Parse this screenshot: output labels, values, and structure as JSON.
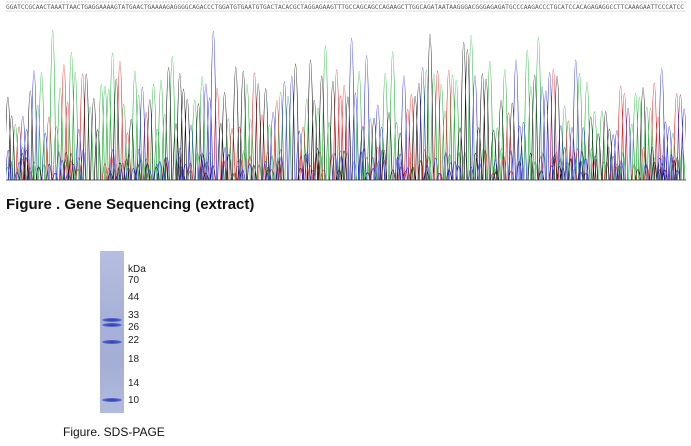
{
  "figure1": {
    "caption": "Figure . Gene Sequencing (extract)",
    "sequence": "GGATCCGCAACTAAATTAACTGAGGAAAAGTATGAACTGAAAAGAGGGGCAGACCCTGGATGTGAATGTGACTACACGCTAGGAGAAGTTTGCCAGCAGCCAGAAGCTTGGCAGATAATAAGGGACGGGAGAGATGCCCAAGACCCTGCATCCACAGAGAGGCCTTCAAAGAATTCCCATCC",
    "colors": {
      "A": "#22b03a",
      "T": "#e02020",
      "G": "#111111",
      "C": "#2a2ad8"
    }
  },
  "figure2": {
    "caption": "Figure. SDS-PAGE",
    "unit_label": "kDa",
    "markers": [
      "70",
      "44",
      "33",
      "26",
      "22",
      "18",
      "14",
      "10"
    ],
    "bands_kda": [
      30,
      27,
      21.5,
      10
    ]
  }
}
